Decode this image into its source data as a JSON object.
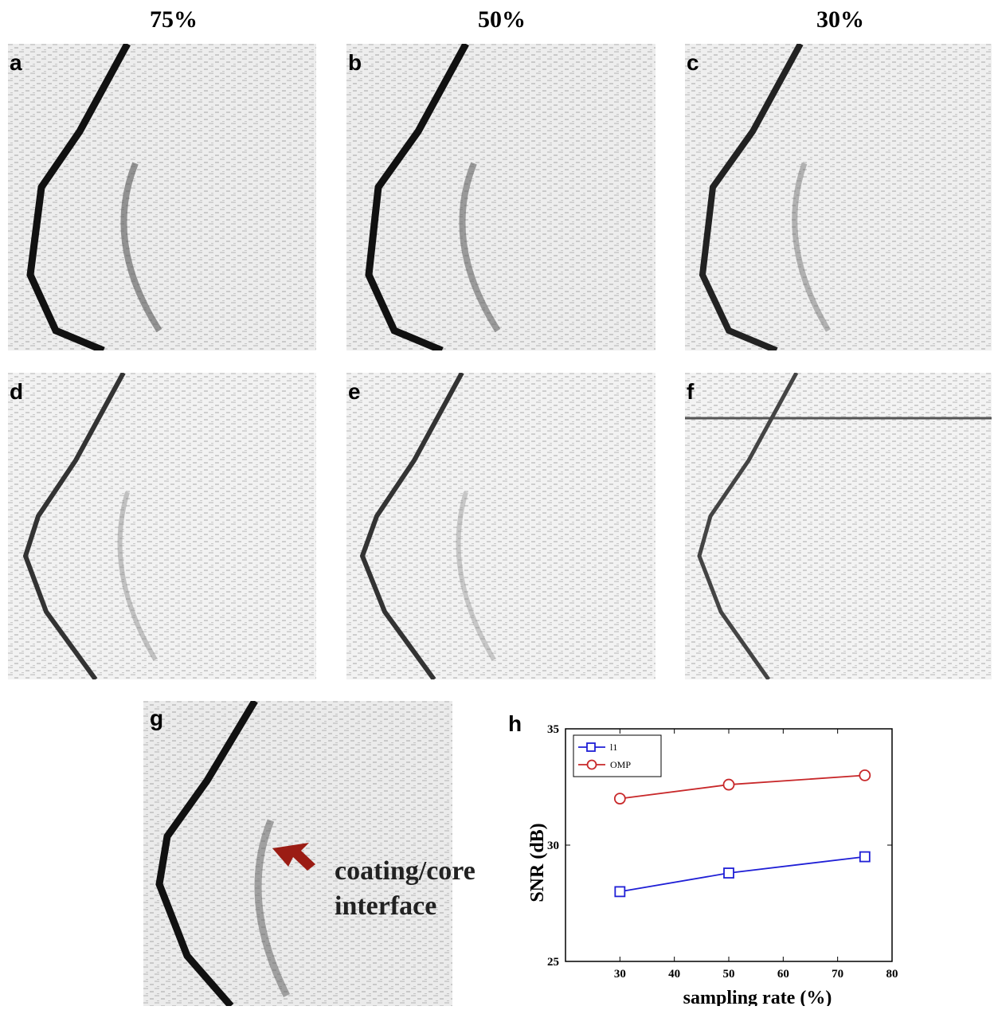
{
  "column_headers": [
    "75%",
    "50%",
    "30%"
  ],
  "panel_labels": [
    "a",
    "b",
    "c",
    "d",
    "e",
    "f",
    "g",
    "h"
  ],
  "annotation": {
    "line1": "coating/core",
    "line2": "interface",
    "arrow_color": "#9b1c14"
  },
  "chart_data": {
    "type": "line",
    "xlabel": "sampling rate (%)",
    "ylabel": "SNR (dB)",
    "xlim": [
      20,
      80
    ],
    "ylim": [
      25,
      35
    ],
    "xticks": [
      30,
      40,
      50,
      60,
      70,
      80
    ],
    "yticks": [
      25,
      30,
      35
    ],
    "legend_position": "top-left",
    "series": [
      {
        "name": "l1",
        "color": "#1f1fd6",
        "marker": "square",
        "x": [
          30,
          50,
          75
        ],
        "y": [
          28.0,
          28.8,
          29.5
        ]
      },
      {
        "name": "OMP",
        "color": "#c8282a",
        "marker": "circle",
        "x": [
          30,
          50,
          75
        ],
        "y": [
          32.0,
          32.6,
          33.0
        ]
      }
    ]
  }
}
